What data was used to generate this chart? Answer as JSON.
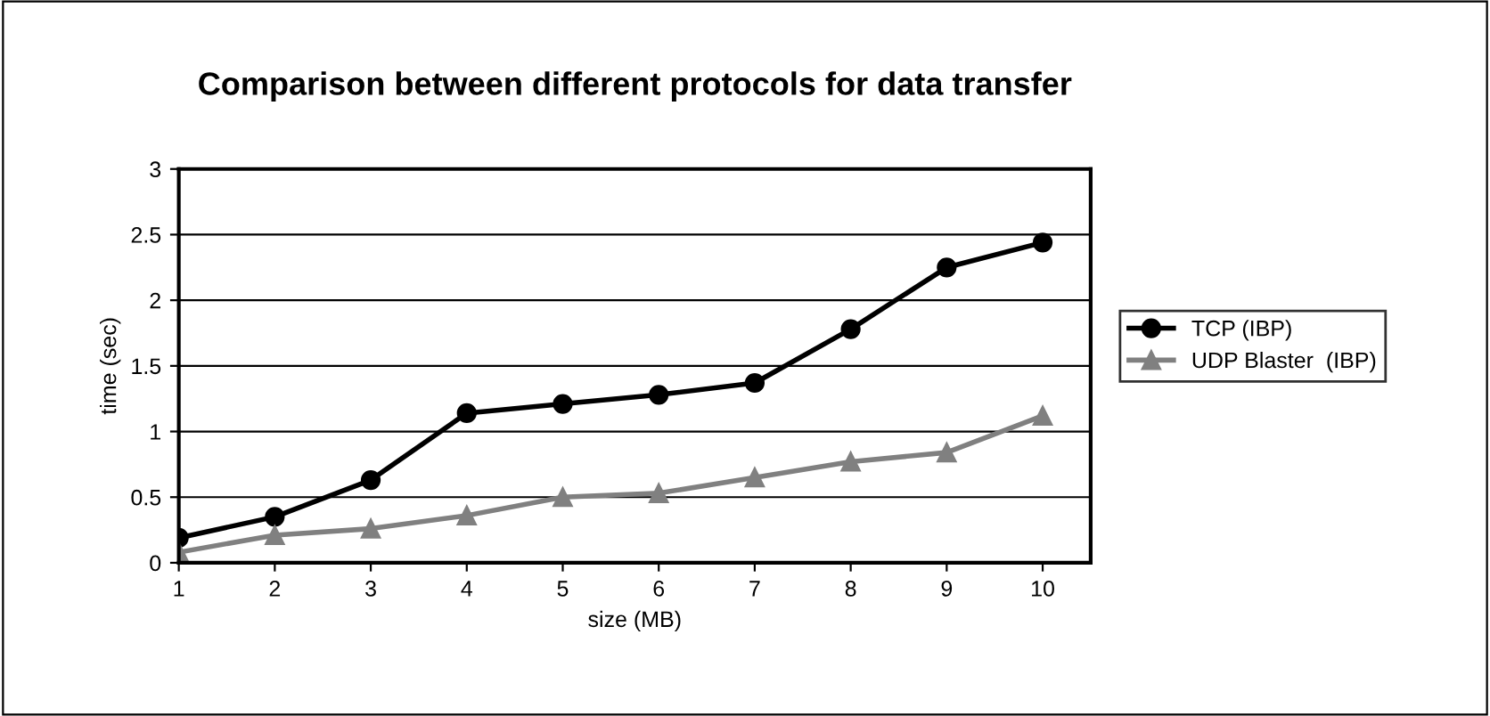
{
  "chart_data": {
    "type": "line",
    "title": "Comparison between different protocols for data transfer",
    "xlabel": "size (MB)",
    "ylabel": "time (sec)",
    "x": [
      1,
      2,
      3,
      4,
      5,
      6,
      7,
      8,
      9,
      10
    ],
    "series": [
      {
        "name": "TCP (IBP)",
        "color": "#000000",
        "marker": "circle",
        "values": [
          0.19,
          0.35,
          0.63,
          1.14,
          1.21,
          1.28,
          1.37,
          1.78,
          2.25,
          2.44
        ]
      },
      {
        "name": "UDP Blaster  (IBP)",
        "color": "#808080",
        "marker": "triangle",
        "values": [
          0.08,
          0.21,
          0.26,
          0.36,
          0.5,
          0.53,
          0.65,
          0.77,
          0.84,
          1.12
        ]
      }
    ],
    "xlim": [
      1,
      10.5
    ],
    "xticks": [
      1,
      2,
      3,
      4,
      5,
      6,
      7,
      8,
      9,
      10
    ],
    "ylim": [
      0,
      3
    ],
    "yticks": [
      0,
      0.5,
      1,
      1.5,
      2,
      2.5,
      3
    ],
    "grid": "y",
    "legend": "right",
    "line_style": "solid"
  }
}
